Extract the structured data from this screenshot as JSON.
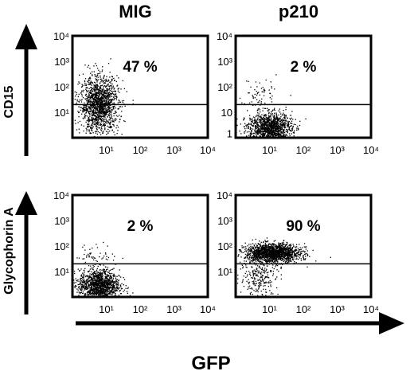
{
  "figure": {
    "column_titles": [
      "MIG",
      "p210"
    ],
    "row_axis_titles": [
      "CD15",
      "Glycophorin A"
    ],
    "x_axis_title": "GFP"
  },
  "colors": {
    "ink": "#000000",
    "background": "#ffffff"
  },
  "chart_data": [
    {
      "type": "scatter",
      "name": "MIG, CD15 vs GFP",
      "xscale": "log",
      "yscale": "log",
      "xlim": [
        1,
        10000
      ],
      "ylim": [
        1,
        10000
      ],
      "x_ticks": [
        "10¹",
        "10²",
        "10³",
        "10⁴"
      ],
      "y_ticks": [
        "10⁴",
        "10³",
        "10²",
        "10¹"
      ],
      "gate_y": 20,
      "percent_label": "47 %",
      "populations": [
        {
          "x_center": 6,
          "y_center": 20,
          "x_spread_decades": 0.28,
          "y_spread_decades": 0.55,
          "points": 1500
        }
      ]
    },
    {
      "type": "scatter",
      "name": "p210, CD15 vs GFP",
      "xscale": "log",
      "yscale": "log",
      "xlim": [
        1,
        10000
      ],
      "ylim": [
        1,
        10000
      ],
      "x_ticks": [
        "10¹",
        "10²",
        "10³",
        "10⁴"
      ],
      "y_ticks": [
        "10⁴",
        "10³",
        "10²",
        "10",
        "1"
      ],
      "gate_y": 20,
      "percent_label": "2 %",
      "populations": [
        {
          "x_center": 10,
          "y_center": 2.5,
          "x_spread_decades": 0.32,
          "y_spread_decades": 0.3,
          "points": 1300
        },
        {
          "x_center": 5,
          "y_center": 60,
          "x_spread_decades": 0.25,
          "y_spread_decades": 0.3,
          "points": 60
        }
      ]
    },
    {
      "type": "scatter",
      "name": "MIG, Glycophorin A vs GFP",
      "xscale": "log",
      "yscale": "log",
      "xlim": [
        1,
        10000
      ],
      "ylim": [
        1,
        10000
      ],
      "x_ticks": [
        "10¹",
        "10²",
        "10³",
        "10⁴"
      ],
      "y_ticks": [
        "10⁴",
        "10³",
        "10²",
        "10¹"
      ],
      "gate_y": 20,
      "percent_label": "2 %",
      "populations": [
        {
          "x_center": 6,
          "y_center": 3,
          "x_spread_decades": 0.3,
          "y_spread_decades": 0.3,
          "points": 1300
        },
        {
          "x_center": 5,
          "y_center": 40,
          "x_spread_decades": 0.3,
          "y_spread_decades": 0.25,
          "points": 60
        }
      ]
    },
    {
      "type": "scatter",
      "name": "p210, Glycophorin A vs GFP",
      "xscale": "log",
      "yscale": "log",
      "xlim": [
        1,
        10000
      ],
      "ylim": [
        1,
        10000
      ],
      "x_ticks": [
        "10¹",
        "10²",
        "10³",
        "10⁴"
      ],
      "y_ticks": [
        "10⁴",
        "10³",
        "10²",
        "10¹"
      ],
      "gate_y": 20,
      "percent_label": "90 %",
      "populations": [
        {
          "x_center": 12,
          "y_center": 55,
          "x_spread_decades": 0.4,
          "y_spread_decades": 0.18,
          "points": 1700
        },
        {
          "x_center": 5,
          "y_center": 6,
          "x_spread_decades": 0.3,
          "y_spread_decades": 0.4,
          "points": 250
        }
      ]
    }
  ]
}
